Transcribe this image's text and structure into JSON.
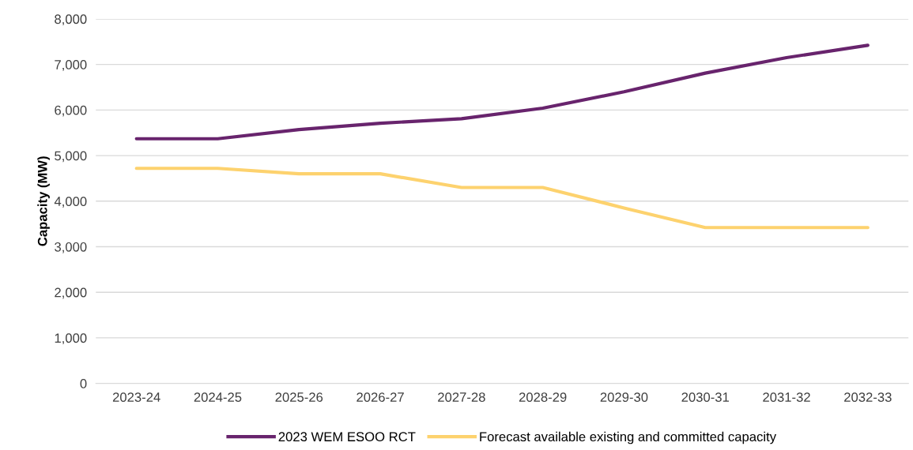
{
  "chart_data": {
    "type": "line",
    "ylabel": "Capacity (MW)",
    "categories": [
      "2023-24",
      "2024-25",
      "2025-26",
      "2026-27",
      "2027-28",
      "2028-29",
      "2029-30",
      "2030-31",
      "2031-32",
      "2032-33"
    ],
    "series": [
      {
        "name": "2023 WEM ESOO RCT",
        "color": "#68246d",
        "values": [
          5370,
          5370,
          5570,
          5710,
          5810,
          6040,
          6400,
          6810,
          7150,
          7420
        ]
      },
      {
        "name": "Forecast available existing and committed capacity",
        "color": "#fdd26e",
        "values": [
          4720,
          4720,
          4600,
          4600,
          4300,
          4300,
          3850,
          3420,
          3420,
          3420
        ]
      }
    ],
    "ylim": [
      0,
      8000
    ],
    "yticks": [
      {
        "value": 0,
        "label": "0"
      },
      {
        "value": 1000,
        "label": "1,000"
      },
      {
        "value": 2000,
        "label": "2,000"
      },
      {
        "value": 3000,
        "label": "3,000"
      },
      {
        "value": 4000,
        "label": "4,000"
      },
      {
        "value": 5000,
        "label": "5,000"
      },
      {
        "value": 6000,
        "label": "6,000"
      },
      {
        "value": 7000,
        "label": "7,000"
      },
      {
        "value": 8000,
        "label": "8,000"
      }
    ],
    "grid": "y",
    "legend": "bottom",
    "marker": "none",
    "line_style": "solid"
  }
}
